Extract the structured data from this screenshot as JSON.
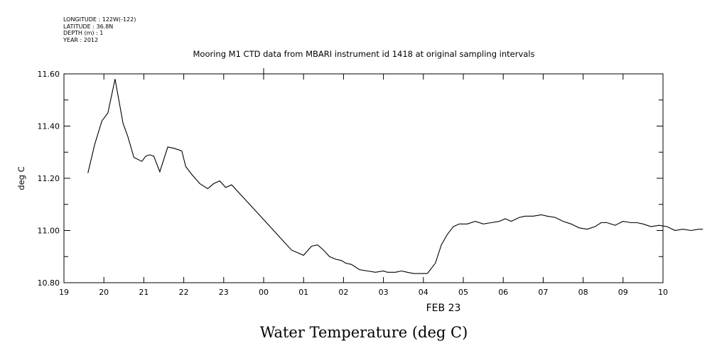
{
  "header": {
    "lines": [
      "LONGITUDE : 122W(-122)",
      "LATITUDE : 36.8N",
      "DEPTH (m) : 1",
      "YEAR : 2012"
    ]
  },
  "chart_data": {
    "type": "line",
    "title": "Mooring M1 CTD data from MBARI instrument id 1418 at original sampling intervals",
    "ylabel": "deg C",
    "xlabel": "FEB 23",
    "caption": "Water Temperature (deg C)",
    "x_unit": "hour",
    "x_range": [
      19,
      10
    ],
    "ylim": [
      10.8,
      11.6
    ],
    "x_tick_labels": [
      "19",
      "20",
      "21",
      "22",
      "23",
      "00",
      "01",
      "02",
      "03",
      "04",
      "05",
      "06",
      "07",
      "08",
      "09",
      "10"
    ],
    "y_tick_labels": [
      "10.80",
      "11.00",
      "11.20",
      "11.40",
      "11.60"
    ],
    "line_color": "#000000",
    "series": [
      {
        "x": [
          19.6,
          19.77,
          19.95,
          20.1,
          20.28,
          20.48,
          20.6,
          20.75,
          20.95,
          21.05,
          21.15,
          21.25,
          21.4,
          21.6,
          21.75,
          21.95,
          22.05,
          22.2,
          22.4,
          22.6,
          22.75,
          22.9,
          23.05,
          23.2,
          23.5,
          23.8,
          24.1,
          24.4,
          24.7,
          25.0,
          25.2,
          25.35,
          25.5,
          25.65,
          25.8,
          25.95,
          26.05,
          26.2,
          26.4,
          26.6,
          26.8,
          27.0,
          27.1,
          27.3,
          27.45,
          27.6,
          27.75,
          27.9,
          28.1,
          28.3,
          28.45,
          28.6,
          28.75,
          28.9,
          29.1,
          29.3,
          29.5,
          29.7,
          29.9,
          30.05,
          30.2,
          30.4,
          30.55,
          30.75,
          30.95,
          31.1,
          31.3,
          31.5,
          31.7,
          31.9,
          32.1,
          32.3,
          32.45,
          32.6,
          32.8,
          33.0,
          33.2,
          33.35,
          33.5,
          33.7,
          33.9,
          34.1,
          34.3,
          34.5,
          34.7,
          34.9,
          35.0
        ],
        "y": [
          11.22,
          11.33,
          11.42,
          11.45,
          11.58,
          11.41,
          11.36,
          11.28,
          11.265,
          11.285,
          11.29,
          11.285,
          11.225,
          11.32,
          11.315,
          11.305,
          11.245,
          11.215,
          11.18,
          11.16,
          11.18,
          11.19,
          11.165,
          11.175,
          11.125,
          11.075,
          11.025,
          10.975,
          10.925,
          10.905,
          10.94,
          10.945,
          10.925,
          10.9,
          10.89,
          10.885,
          10.875,
          10.87,
          10.85,
          10.845,
          10.84,
          10.845,
          10.84,
          10.84,
          10.845,
          10.84,
          10.835,
          10.835,
          10.835,
          10.875,
          10.945,
          10.985,
          11.015,
          11.025,
          11.025,
          11.035,
          11.025,
          11.03,
          11.035,
          11.045,
          11.035,
          11.05,
          11.055,
          11.055,
          11.06,
          11.055,
          11.05,
          11.035,
          11.025,
          11.01,
          11.005,
          11.015,
          11.03,
          11.03,
          11.02,
          11.035,
          11.03,
          11.03,
          11.025,
          11.015,
          11.02,
          11.015,
          11.0,
          11.005,
          11.0,
          11.005,
          11.005
        ]
      }
    ]
  }
}
